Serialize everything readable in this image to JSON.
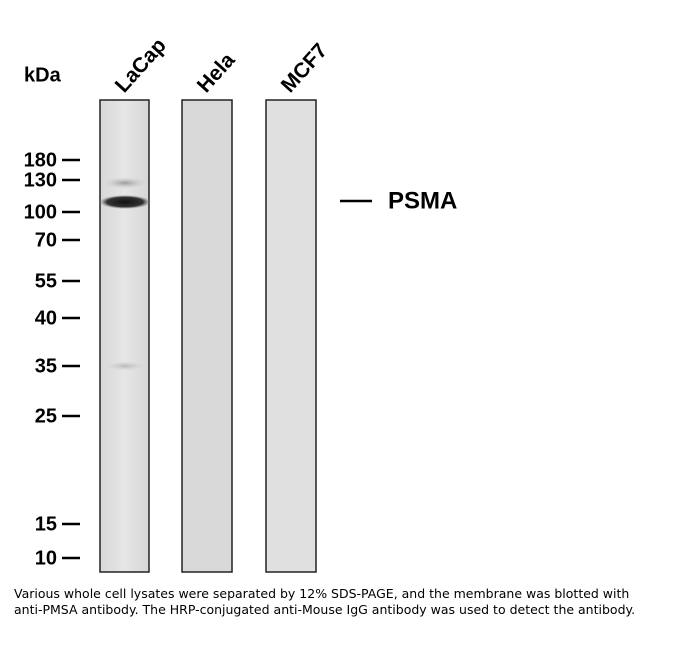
{
  "unit_label": "kDa",
  "lanes": [
    "LaCap",
    "Hela",
    "MCF7"
  ],
  "markers": [
    180,
    130,
    100,
    70,
    55,
    40,
    35,
    25,
    15,
    10
  ],
  "band_label": "PSMA",
  "caption": "Various whole cell lysates were separated by 12% SDS-PAGE, and the membrane was blotted with anti-PMSA antibody. The HRP-conjugated anti-Mouse IgG antibody was used to detect the antibody."
}
